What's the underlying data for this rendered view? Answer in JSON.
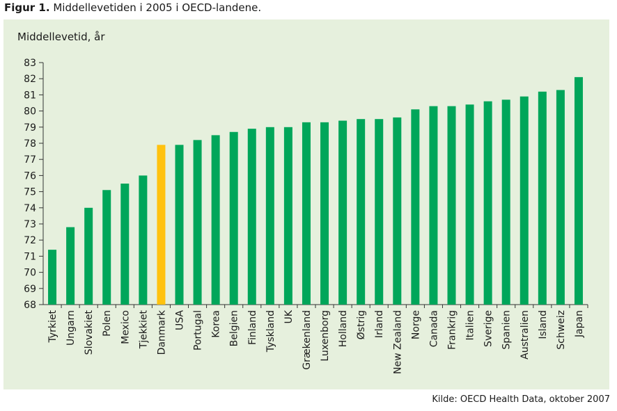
{
  "figure": {
    "label": "Figur 1.",
    "title": "Middellevetiden i 2005 i OECD-landene.",
    "source": "Kilde: OECD Health Data, oktober 2007"
  },
  "colors": {
    "bar": "#00a65a",
    "highlight": "#ffc20e",
    "panel": "#e6f0dd",
    "axis": "#333333"
  },
  "chart_data": {
    "type": "bar",
    "title": "Middellevetiden i 2005 i OECD-landene.",
    "ylabel": "Middellevetid, år",
    "xlabel": "",
    "ylim": [
      68,
      83
    ],
    "yticks": [
      68,
      69,
      70,
      71,
      72,
      73,
      74,
      75,
      76,
      77,
      78,
      79,
      80,
      81,
      82,
      83
    ],
    "grid": false,
    "highlight": "Danmark",
    "categories": [
      "Tyrkiet",
      "Ungarn",
      "Slovakiet",
      "Polen",
      "Mexico",
      "Tjekkiet",
      "Danmark",
      "USA",
      "Portugal",
      "Korea",
      "Belgien",
      "Finland",
      "Tyskland",
      "UK",
      "Grækenland",
      "Luxenborg",
      "Holland",
      "Østrig",
      "Irland",
      "New Zealand",
      "Norge",
      "Canada",
      "Frankrig",
      "Italien",
      "Sverige",
      "Spanien",
      "Australien",
      "Island",
      "Schweiz",
      "Japan"
    ],
    "values": [
      71.4,
      72.8,
      74.0,
      75.1,
      75.5,
      76.0,
      77.9,
      77.9,
      78.2,
      78.5,
      78.7,
      78.9,
      79.0,
      79.0,
      79.3,
      79.3,
      79.4,
      79.5,
      79.5,
      79.6,
      80.1,
      80.3,
      80.3,
      80.4,
      80.6,
      80.7,
      80.9,
      81.2,
      81.3,
      82.1
    ]
  }
}
